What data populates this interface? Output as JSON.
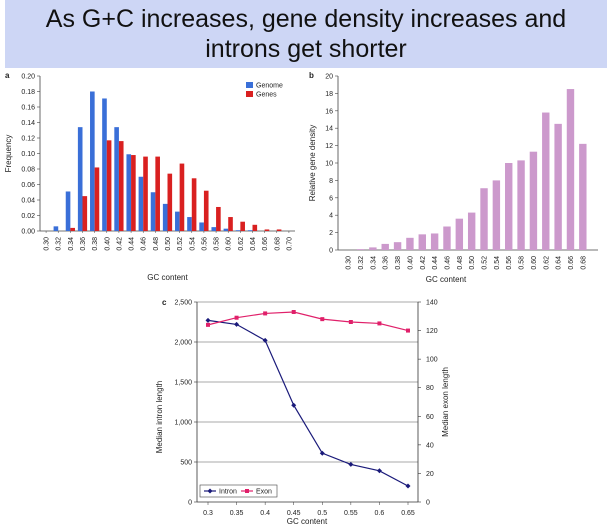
{
  "slide": {
    "title_line1": "As G+C increases, gene density increases and",
    "title_line2": "introns get shorter"
  },
  "chart_data": [
    {
      "panel": "a",
      "type": "bar",
      "xlabel": "GC content",
      "ylabel": "Frequency",
      "ylim": [
        0,
        0.2
      ],
      "yticks": [
        "0.00",
        "0.02",
        "0.04",
        "0.06",
        "0.08",
        "0.10",
        "0.12",
        "0.14",
        "0.16",
        "0.18",
        "0.20"
      ],
      "categories": [
        "0.30",
        "0.32",
        "0.34",
        "0.36",
        "0.38",
        "0.40",
        "0.42",
        "0.44",
        "0.46",
        "0.48",
        "0.50",
        "0.52",
        "0.54",
        "0.56",
        "0.58",
        "0.60",
        "0.62",
        "0.64",
        "0.66",
        "0.68",
        "0.70"
      ],
      "legend_position": "top-right",
      "series": [
        {
          "name": "Genome",
          "color": "#3a6fd8",
          "values": [
            0.0,
            0.006,
            0.051,
            0.134,
            0.18,
            0.171,
            0.134,
            0.099,
            0.07,
            0.05,
            0.035,
            0.025,
            0.018,
            0.011,
            0.005,
            0.003,
            0.001,
            0.001,
            0.0,
            0.0,
            0.0
          ]
        },
        {
          "name": "Genes",
          "color": "#d92020",
          "values": [
            0.0,
            0.0,
            0.004,
            0.045,
            0.082,
            0.117,
            0.116,
            0.098,
            0.096,
            0.096,
            0.074,
            0.087,
            0.068,
            0.052,
            0.031,
            0.018,
            0.012,
            0.008,
            0.002,
            0.002,
            0.0
          ]
        }
      ]
    },
    {
      "panel": "b",
      "type": "bar",
      "xlabel": "GC content",
      "ylabel": "Relative gene density",
      "ylim": [
        0,
        20
      ],
      "yticks": [
        "0",
        "2",
        "4",
        "6",
        "8",
        "10",
        "12",
        "14",
        "16",
        "18",
        "20"
      ],
      "categories": [
        "0.30",
        "0.32",
        "0.34",
        "0.36",
        "0.38",
        "0.40",
        "0.42",
        "0.44",
        "0.46",
        "0.48",
        "0.50",
        "0.52",
        "0.54",
        "0.56",
        "0.58",
        "0.60",
        "0.62",
        "0.64",
        "0.66",
        "0.68"
      ],
      "color": "#cc99cc",
      "values": [
        0.0,
        0.1,
        0.3,
        0.7,
        0.9,
        1.4,
        1.8,
        1.9,
        2.7,
        3.6,
        4.3,
        7.1,
        8.0,
        10.0,
        10.3,
        11.3,
        15.8,
        14.5,
        18.5,
        12.2
      ]
    },
    {
      "panel": "c",
      "type": "line",
      "xlabel": "GC content",
      "ylabel_left": "Median intron length",
      "ylabel_right": "Median exon length",
      "x": [
        "0.3",
        "0.35",
        "0.4",
        "0.45",
        "0.5",
        "0.55",
        "0.6",
        "0.65"
      ],
      "ylim_left": [
        0,
        2500
      ],
      "yticks_left": [
        "0",
        "500",
        "1,000",
        "1,500",
        "2,000",
        "2,500"
      ],
      "ylim_right": [
        0,
        140
      ],
      "yticks_right": [
        "0",
        "20",
        "40",
        "60",
        "80",
        "100",
        "120",
        "140"
      ],
      "grid": true,
      "legend_position": "bottom-left",
      "series": [
        {
          "name": "Intron",
          "axis": "left",
          "color": "#1a1a7a",
          "values": [
            2270,
            2220,
            2020,
            1210,
            610,
            470,
            390,
            200
          ]
        },
        {
          "name": "Exon",
          "axis": "right",
          "color": "#e0206a",
          "values": [
            124,
            129,
            132,
            133,
            128,
            126,
            125,
            120
          ]
        }
      ]
    }
  ]
}
